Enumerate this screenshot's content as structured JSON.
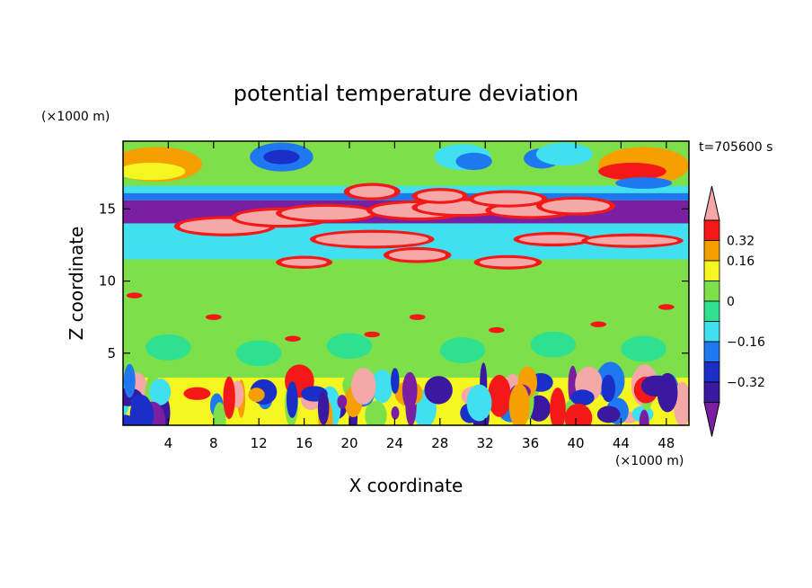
{
  "chart_data": {
    "type": "heatmap",
    "title": "potential temperature deviation",
    "xlabel": "X coordinate",
    "ylabel": "Z coordinate",
    "x_unit": "(×1000 m)",
    "y_unit": "(×1000 m)",
    "time_label": "t=705600 s",
    "xlim": [
      0,
      50
    ],
    "ylim": [
      0,
      19.7
    ],
    "xticks": [
      "4",
      "8",
      "12",
      "16",
      "20",
      "24",
      "28",
      "32",
      "36",
      "40",
      "44",
      "48"
    ],
    "yticks": [
      "5",
      "10",
      "15"
    ],
    "colorbar": {
      "levels": [
        -0.4,
        -0.32,
        -0.24,
        -0.16,
        -0.08,
        0,
        0.08,
        0.16,
        0.24,
        0.32,
        0.4
      ],
      "tick_labels": [
        "0.32",
        "0.16",
        "0",
        "−0.16",
        "−0.32"
      ],
      "colors": [
        "#7a1fa2",
        "#3a18a0",
        "#1a2ec8",
        "#1e78f0",
        "#40e0f0",
        "#2fe08e",
        "#7de04a",
        "#f5f520",
        "#f5a000",
        "#f51818",
        "#f5a8a8"
      ]
    }
  }
}
